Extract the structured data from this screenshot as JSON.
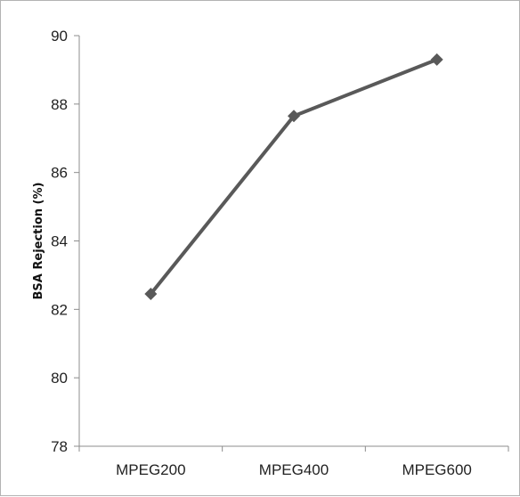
{
  "chart_data": {
    "type": "line",
    "categories": [
      "MPEG200",
      "MPEG400",
      "MPEG600"
    ],
    "values": [
      82.45,
      87.65,
      89.3
    ],
    "ylabel": "BSA Rejection (%)",
    "ylim": [
      78,
      90
    ],
    "yticks": [
      78,
      80,
      82,
      84,
      86,
      88,
      90
    ],
    "grid": false,
    "legend": "none",
    "line_color": "#595959",
    "marker": "diamond"
  }
}
